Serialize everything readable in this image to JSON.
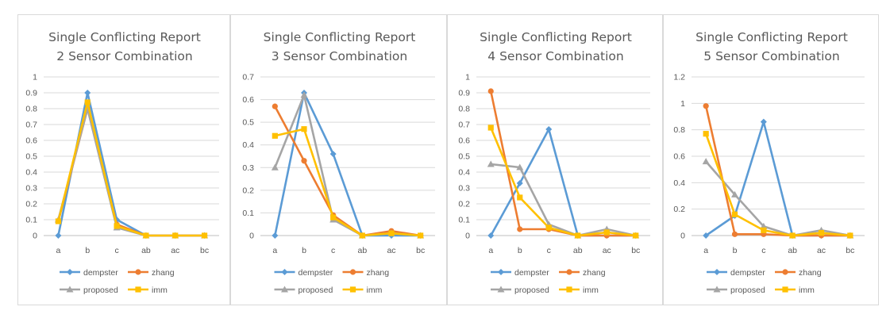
{
  "colors": {
    "dempster": "#5b9bd5",
    "zhang": "#ed7d31",
    "proposed": "#a5a5a5",
    "imm": "#ffc000",
    "grid": "#d9d9d9"
  },
  "chart_data": [
    {
      "type": "line",
      "title": [
        "Single Conflicting Report",
        "2 Sensor Combination"
      ],
      "categories": [
        "a",
        "b",
        "c",
        "ab",
        "ac",
        "bc"
      ],
      "ylim": [
        0,
        1
      ],
      "ystep": 0.1,
      "yticks": [
        "0",
        "0.1",
        "0.2",
        "0.3",
        "0.4",
        "0.5",
        "0.6",
        "0.7",
        "0.8",
        "0.9",
        "1"
      ],
      "grid": true,
      "legend": "bottom",
      "series": [
        {
          "name": "dempster",
          "values": [
            0,
            0.9,
            0.1,
            0,
            0,
            0
          ]
        },
        {
          "name": "zhang",
          "values": [
            0.09,
            0.8,
            0.07,
            0,
            0,
            0
          ]
        },
        {
          "name": "proposed",
          "values": [
            0.1,
            0.8,
            0.05,
            0,
            0,
            0
          ]
        },
        {
          "name": "imm",
          "values": [
            0.09,
            0.84,
            0.06,
            0,
            0,
            0
          ]
        }
      ]
    },
    {
      "type": "line",
      "title": [
        "Single Conflicting Report",
        "3 Sensor Combination"
      ],
      "categories": [
        "a",
        "b",
        "c",
        "ab",
        "ac",
        "bc"
      ],
      "ylim": [
        0,
        0.7
      ],
      "ystep": 0.1,
      "yticks": [
        "0",
        "0.1",
        "0.2",
        "0.3",
        "0.4",
        "0.5",
        "0.6",
        "0.7"
      ],
      "grid": true,
      "legend": "bottom",
      "series": [
        {
          "name": "dempster",
          "values": [
            0,
            0.63,
            0.36,
            0,
            0,
            0
          ]
        },
        {
          "name": "zhang",
          "values": [
            0.57,
            0.33,
            0.09,
            0,
            0.02,
            0
          ]
        },
        {
          "name": "proposed",
          "values": [
            0.3,
            0.62,
            0.07,
            0,
            0.01,
            0
          ]
        },
        {
          "name": "imm",
          "values": [
            0.44,
            0.47,
            0.08,
            0,
            0.01,
            0
          ]
        }
      ]
    },
    {
      "type": "line",
      "title": [
        "Single Conflicting Report",
        "4 Sensor Combination"
      ],
      "categories": [
        "a",
        "b",
        "c",
        "ab",
        "ac",
        "bc"
      ],
      "ylim": [
        0,
        1
      ],
      "ystep": 0.1,
      "yticks": [
        "0",
        "0.1",
        "0.2",
        "0.3",
        "0.4",
        "0.5",
        "0.6",
        "0.7",
        "0.8",
        "0.9",
        "1"
      ],
      "grid": true,
      "legend": "bottom",
      "series": [
        {
          "name": "dempster",
          "values": [
            0,
            0.33,
            0.67,
            0,
            0,
            0
          ]
        },
        {
          "name": "zhang",
          "values": [
            0.91,
            0.04,
            0.04,
            0,
            0,
            0
          ]
        },
        {
          "name": "proposed",
          "values": [
            0.45,
            0.43,
            0.07,
            0,
            0.04,
            0
          ]
        },
        {
          "name": "imm",
          "values": [
            0.68,
            0.24,
            0.05,
            0,
            0.02,
            0
          ]
        }
      ]
    },
    {
      "type": "line",
      "title": [
        "Single Conflicting Report",
        "5 Sensor Combination"
      ],
      "categories": [
        "a",
        "b",
        "c",
        "ab",
        "ac",
        "bc"
      ],
      "ylim": [
        0,
        1.2
      ],
      "ystep": 0.2,
      "yticks": [
        "0",
        "0.2",
        "0.4",
        "0.6",
        "0.8",
        "1",
        "1.2"
      ],
      "grid": true,
      "legend": "bottom",
      "series": [
        {
          "name": "dempster",
          "values": [
            0,
            0.15,
            0.86,
            0,
            0,
            0
          ]
        },
        {
          "name": "zhang",
          "values": [
            0.98,
            0.01,
            0.01,
            0,
            0,
            0
          ]
        },
        {
          "name": "proposed",
          "values": [
            0.56,
            0.31,
            0.07,
            0,
            0.04,
            0
          ]
        },
        {
          "name": "imm",
          "values": [
            0.77,
            0.16,
            0.04,
            0,
            0.02,
            0
          ]
        }
      ]
    }
  ]
}
